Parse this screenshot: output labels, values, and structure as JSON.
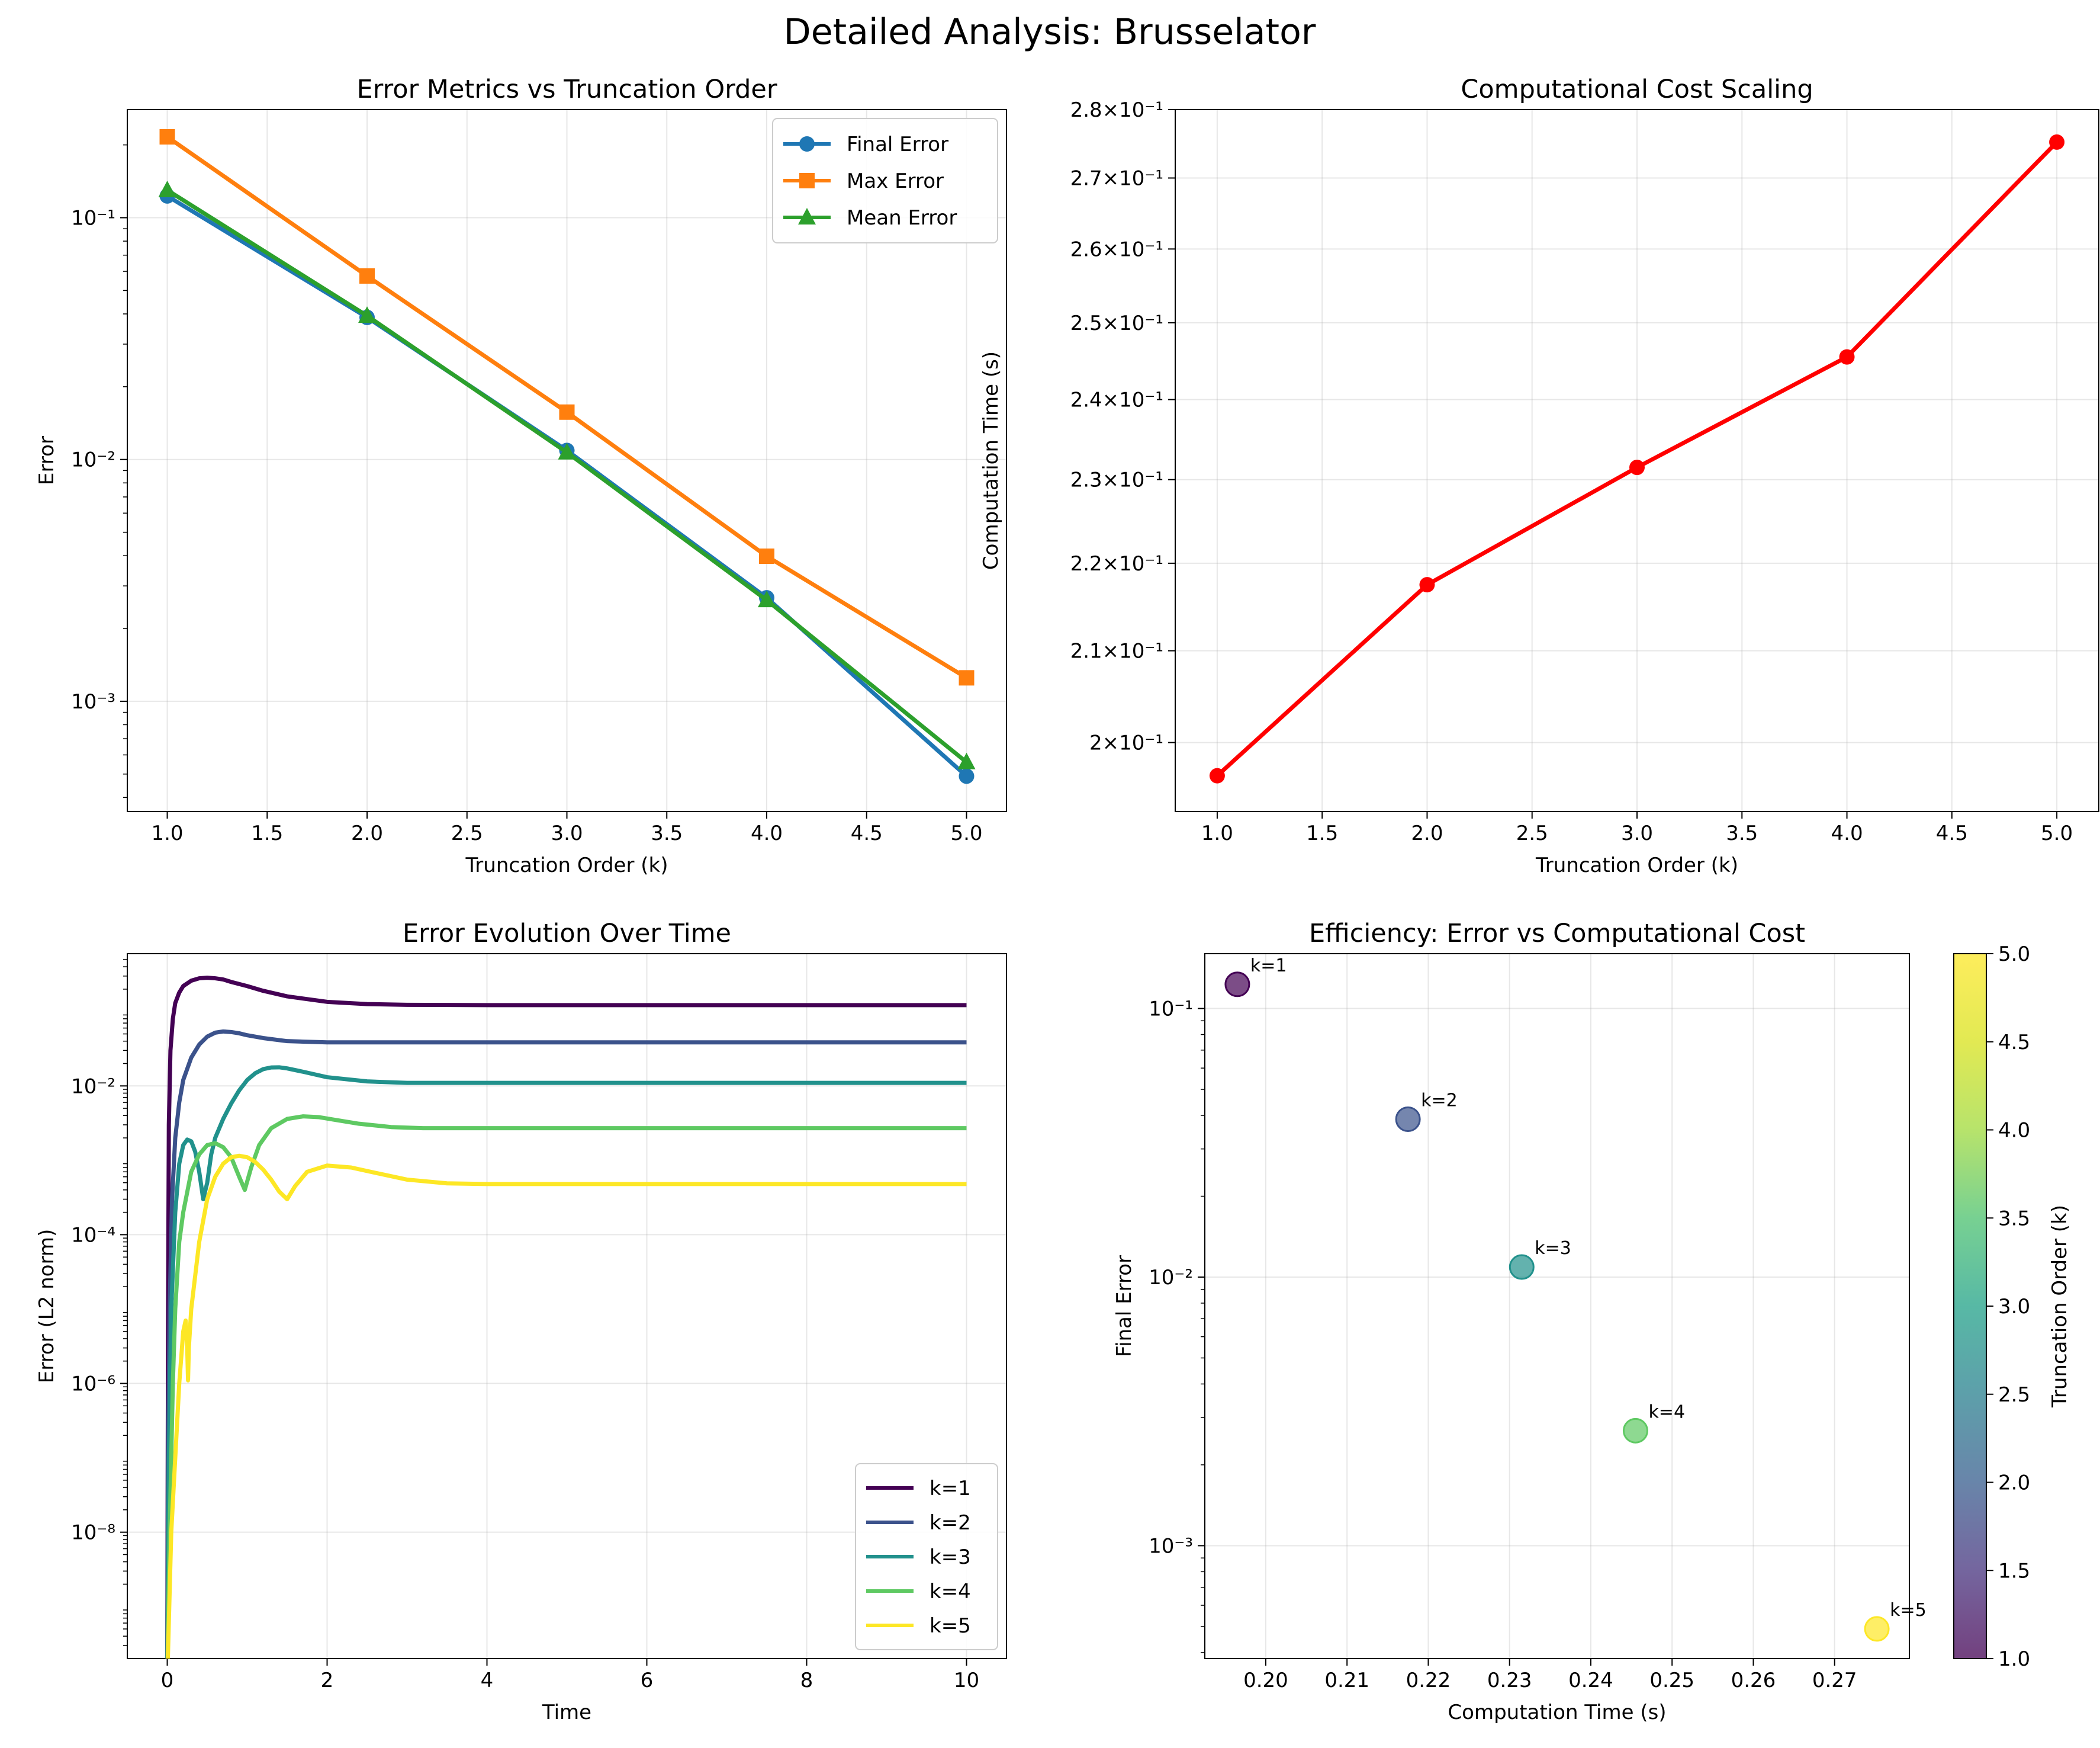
{
  "suptitle": "Detailed Analysis: Brusselator",
  "colors": {
    "final": "#1f77b4",
    "max": "#ff7f0e",
    "mean": "#2ca02c",
    "cost": "#ff0000",
    "viridis": [
      "#440154",
      "#3b528b",
      "#21918c",
      "#5ec962",
      "#fde725"
    ]
  },
  "chart_data": [
    {
      "id": "errors",
      "type": "line",
      "title": "Error Metrics vs Truncation Order",
      "xlabel": "Truncation Order (k)",
      "ylabel": "Error",
      "xscale": "linear",
      "yscale": "log",
      "xlim": [
        0.8,
        5.2
      ],
      "ylim": [
        0.00035,
        0.28
      ],
      "xticks": [
        1.0,
        1.5,
        2.0,
        2.5,
        3.0,
        3.5,
        4.0,
        4.5,
        5.0
      ],
      "xtick_labels": [
        "1.0",
        "1.5",
        "2.0",
        "2.5",
        "3.0",
        "3.5",
        "4.0",
        "4.5",
        "5.0"
      ],
      "yticks": [
        0.001,
        0.01,
        0.1
      ],
      "grid": true,
      "legend": "top-right",
      "x": [
        1,
        2,
        3,
        4,
        5
      ],
      "series": [
        {
          "name": "Final Error",
          "marker": "circle",
          "color": "#1f77b4",
          "values": [
            0.123,
            0.0387,
            0.0109,
            0.00268,
            0.00049
          ]
        },
        {
          "name": "Max Error",
          "marker": "square",
          "color": "#ff7f0e",
          "values": [
            0.216,
            0.0574,
            0.0157,
            0.00398,
            0.00125
          ]
        },
        {
          "name": "Mean Error",
          "marker": "triangle",
          "color": "#2ca02c",
          "values": [
            0.13,
            0.0393,
            0.0107,
            0.00262,
            0.00056
          ]
        }
      ]
    },
    {
      "id": "cost",
      "type": "line",
      "title": "Computational Cost Scaling",
      "xlabel": "Truncation Order (k)",
      "ylabel": "Computation Time (s)",
      "xscale": "linear",
      "yscale": "log",
      "xlim": [
        0.8,
        5.2
      ],
      "ylim": [
        0.1928,
        0.28
      ],
      "xticks": [
        1.0,
        1.5,
        2.0,
        2.5,
        3.0,
        3.5,
        4.0,
        4.5,
        5.0
      ],
      "xtick_labels": [
        "1.0",
        "1.5",
        "2.0",
        "2.5",
        "3.0",
        "3.5",
        "4.0",
        "4.5",
        "5.0"
      ],
      "ytick_values": [
        0.2,
        0.21,
        0.22,
        0.23,
        0.24,
        0.25,
        0.26,
        0.27,
        0.28
      ],
      "ytick_mantissas": [
        "2",
        "2.1",
        "2.2",
        "2.3",
        "2.4",
        "2.5",
        "2.6",
        "2.7",
        "2.8"
      ],
      "ytick_base": "10",
      "ytick_exponent": "−1",
      "grid": true,
      "x": [
        1,
        2,
        3,
        4,
        5
      ],
      "series": [
        {
          "color": "#ff0000",
          "values": [
            0.1965,
            0.2175,
            0.2315,
            0.2455,
            0.2752
          ]
        }
      ]
    },
    {
      "id": "evolution",
      "type": "line",
      "title": "Error Evolution Over Time",
      "xlabel": "Time",
      "ylabel": "Error (L2 norm)",
      "xscale": "linear",
      "yscale": "log",
      "xlim": [
        -0.5,
        10.5
      ],
      "ylim": [
        2e-10,
        0.6
      ],
      "xticks": [
        0,
        2,
        4,
        6,
        8,
        10
      ],
      "xtick_labels": [
        "0",
        "2",
        "4",
        "6",
        "8",
        "10"
      ],
      "yticks": [
        1e-08,
        1e-06,
        0.0001,
        0.01
      ],
      "grid": true,
      "legend": "lower-right",
      "series": [
        {
          "name": "k=1",
          "color": "#440154",
          "x": [
            0,
            0.01,
            0.02,
            0.04,
            0.07,
            0.1,
            0.15,
            0.2,
            0.3,
            0.4,
            0.5,
            0.6,
            0.7,
            0.8,
            1.0,
            1.2,
            1.5,
            2.0,
            2.5,
            3.0,
            4.0,
            6.0,
            8.0,
            10.0
          ],
          "values": [
            1e-10,
            1e-05,
            0.003,
            0.03,
            0.08,
            0.13,
            0.18,
            0.22,
            0.26,
            0.28,
            0.285,
            0.28,
            0.27,
            0.25,
            0.22,
            0.19,
            0.16,
            0.135,
            0.126,
            0.123,
            0.122,
            0.122,
            0.122,
            0.122
          ]
        },
        {
          "name": "k=2",
          "color": "#3b528b",
          "x": [
            0,
            0.01,
            0.03,
            0.06,
            0.1,
            0.15,
            0.2,
            0.3,
            0.4,
            0.5,
            0.6,
            0.7,
            0.8,
            0.9,
            1.0,
            1.2,
            1.5,
            2.0,
            2.5,
            3.0,
            4.0,
            6.0,
            8.0,
            10.0
          ],
          "values": [
            1e-10,
            1e-07,
            1e-05,
            0.0003,
            0.002,
            0.006,
            0.012,
            0.024,
            0.036,
            0.046,
            0.052,
            0.054,
            0.053,
            0.051,
            0.048,
            0.044,
            0.04,
            0.0385,
            0.0385,
            0.0385,
            0.0385,
            0.0385,
            0.0385,
            0.0385
          ]
        },
        {
          "name": "k=3",
          "color": "#21918c",
          "x": [
            0,
            0.02,
            0.05,
            0.1,
            0.15,
            0.2,
            0.25,
            0.3,
            0.35,
            0.4,
            0.45,
            0.5,
            0.55,
            0.6,
            0.7,
            0.8,
            0.9,
            1.0,
            1.1,
            1.2,
            1.3,
            1.4,
            1.5,
            1.7,
            2.0,
            2.5,
            3.0,
            4.0,
            6.0,
            8.0,
            10.0
          ],
          "values": [
            1e-10,
            1e-07,
            1e-05,
            0.0002,
            0.0009,
            0.0016,
            0.0019,
            0.0018,
            0.0013,
            0.0007,
            0.0003,
            0.0005,
            0.0012,
            0.002,
            0.0036,
            0.0058,
            0.0087,
            0.012,
            0.0148,
            0.0168,
            0.0177,
            0.0178,
            0.0172,
            0.0155,
            0.0131,
            0.0115,
            0.011,
            0.011,
            0.011,
            0.011,
            0.011
          ]
        },
        {
          "name": "k=4",
          "color": "#5ec962",
          "x": [
            0,
            0.03,
            0.07,
            0.1,
            0.15,
            0.2,
            0.3,
            0.4,
            0.5,
            0.6,
            0.7,
            0.8,
            0.9,
            0.97,
            1.05,
            1.15,
            1.3,
            1.5,
            1.7,
            1.9,
            2.1,
            2.4,
            2.8,
            3.2,
            4.0,
            6.0,
            8.0,
            10.0
          ],
          "values": [
            1e-10,
            1e-08,
            1e-06,
            1e-05,
            8e-05,
            0.0002,
            0.0007,
            0.0012,
            0.0016,
            0.0017,
            0.0015,
            0.0011,
            0.0006,
            0.0004,
            0.0008,
            0.0016,
            0.0027,
            0.0036,
            0.0039,
            0.0038,
            0.0035,
            0.0031,
            0.0028,
            0.0027,
            0.0027,
            0.0027,
            0.0027,
            0.0027
          ]
        },
        {
          "name": "k=5",
          "color": "#fde725",
          "x": [
            0,
            0.05,
            0.1,
            0.15,
            0.2,
            0.23,
            0.25,
            0.26,
            0.27,
            0.3,
            0.4,
            0.5,
            0.6,
            0.7,
            0.8,
            0.9,
            1.0,
            1.1,
            1.2,
            1.3,
            1.4,
            1.5,
            1.6,
            1.75,
            2.0,
            2.3,
            2.6,
            3.0,
            3.5,
            4.0,
            6.0,
            8.0,
            10.0
          ],
          "values": [
            1e-10,
            1e-08,
            1e-07,
            1e-06,
            5e-06,
            7e-06,
            3e-06,
            1.1e-06,
            3e-06,
            1e-05,
            8e-05,
            0.0003,
            0.0006,
            0.0009,
            0.0011,
            0.00115,
            0.0011,
            0.00095,
            0.00075,
            0.00055,
            0.00038,
            0.0003,
            0.00045,
            0.0007,
            0.00085,
            0.0008,
            0.00068,
            0.00055,
            0.00049,
            0.00048,
            0.00048,
            0.00048,
            0.00048
          ]
        }
      ]
    },
    {
      "id": "efficiency",
      "type": "scatter",
      "title": "Efficiency: Error vs Computational Cost",
      "xlabel": "Computation Time (s)",
      "ylabel": "Final Error",
      "xscale": "linear",
      "yscale": "log",
      "xlim": [
        0.1925,
        0.2792
      ],
      "ylim": [
        0.00038,
        0.16
      ],
      "xticks": [
        0.2,
        0.21,
        0.22,
        0.23,
        0.24,
        0.25,
        0.26,
        0.27
      ],
      "xtick_labels": [
        "0.20",
        "0.21",
        "0.22",
        "0.23",
        "0.24",
        "0.25",
        "0.26",
        "0.27"
      ],
      "yticks": [
        0.001,
        0.01,
        0.1
      ],
      "grid": true,
      "x": [
        0.1965,
        0.2175,
        0.2315,
        0.2455,
        0.2752
      ],
      "values": [
        0.123,
        0.0387,
        0.0109,
        0.00268,
        0.00049
      ],
      "point_labels": [
        "k=1",
        "k=2",
        "k=3",
        "k=4",
        "k=5"
      ],
      "point_colors": [
        "#440154",
        "#3b528b",
        "#21918c",
        "#5ec962",
        "#fde725"
      ],
      "colorbar": {
        "label": "Truncation Order (k)",
        "range": [
          1.0,
          5.0
        ],
        "tick_labels": [
          "1.0",
          "1.5",
          "2.0",
          "2.5",
          "3.0",
          "3.5",
          "4.0",
          "4.5",
          "5.0"
        ]
      }
    }
  ]
}
